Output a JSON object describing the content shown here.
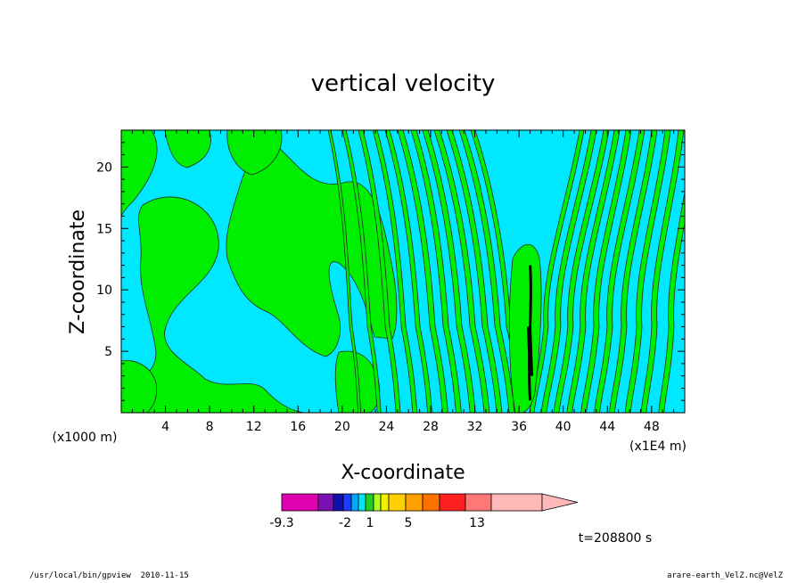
{
  "chart_data": {
    "type": "heatmap",
    "title": "vertical velocity",
    "xlabel": "X-coordinate",
    "ylabel": "Z-coordinate",
    "x_unit_label": "(x1000 m)",
    "x_scale_label": "(x1E4 m)",
    "xlim": [
      0,
      51
    ],
    "ylim": [
      0,
      23
    ],
    "x_ticks": [
      "4",
      "8",
      "12",
      "16",
      "20",
      "24",
      "28",
      "32",
      "36",
      "40",
      "44",
      "48"
    ],
    "y_ticks": [
      "5",
      "10",
      "15",
      "20"
    ],
    "time_label": "t=208800 s",
    "colorbar": {
      "tick_labels": [
        "-9.3",
        "-2",
        "1",
        "5",
        "13"
      ],
      "colors": [
        "#e000b0",
        "#7a10b0",
        "#1010b0",
        "#1c3cff",
        "#00a8ff",
        "#00e8f0",
        "#20d020",
        "#b0ff20",
        "#f0f000",
        "#ffd000",
        "#ffa000",
        "#ff7000",
        "#ff2020",
        "#ff7878",
        "#ffb8b8"
      ],
      "extend": "max"
    },
    "fields": [
      {
        "name": "negative",
        "color": "#00e8ff"
      },
      {
        "name": "positive",
        "color": "#00ee00"
      },
      {
        "name": "strong-updraft",
        "color": "#000000"
      }
    ]
  },
  "footer": {
    "left": "/usr/local/bin/gpview  2010-11-15",
    "right": "arare-earth_VelZ.nc@VelZ"
  }
}
